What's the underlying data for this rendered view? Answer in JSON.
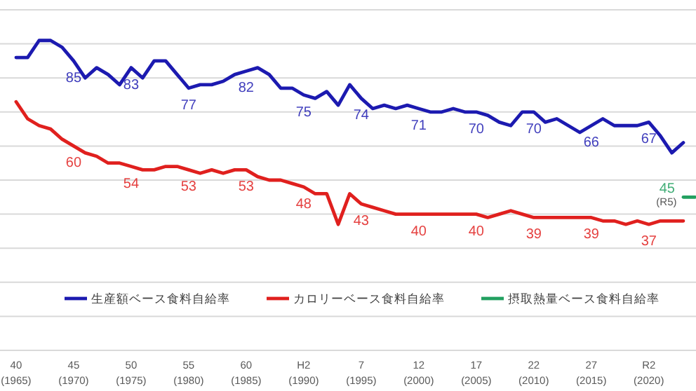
{
  "chart_data": {
    "type": "line",
    "categories": [
      "40\n(1965)",
      null,
      null,
      null,
      null,
      "45\n(1970)",
      null,
      null,
      null,
      null,
      "50\n(1975)",
      null,
      null,
      null,
      null,
      "55\n(1980)",
      null,
      null,
      null,
      null,
      "60\n(1985)",
      null,
      null,
      null,
      null,
      "H2\n(1990)",
      null,
      null,
      null,
      null,
      "7\n(1995)",
      null,
      null,
      null,
      null,
      "12\n(2000)",
      null,
      null,
      null,
      null,
      "17\n(2005)",
      null,
      null,
      null,
      null,
      "22\n(2010)",
      null,
      null,
      null,
      null,
      "27\n(2015)",
      null,
      null,
      null,
      null,
      "R2\n(2020)",
      null,
      null,
      null,
      null
    ],
    "series": [
      {
        "name": "生産額ベース食料自給率",
        "color": "#1c1ab0",
        "values": [
          86,
          86,
          91,
          91,
          89,
          85,
          80,
          83,
          81,
          78,
          83,
          80,
          85,
          85,
          81,
          77,
          78,
          78,
          79,
          81,
          82,
          83,
          81,
          77,
          77,
          75,
          74,
          76,
          72,
          78,
          74,
          71,
          72,
          71,
          72,
          71,
          70,
          70,
          71,
          70,
          70,
          69,
          67,
          66,
          70,
          70,
          67,
          68,
          66,
          64,
          66,
          68,
          66,
          66,
          66,
          67,
          63,
          58,
          61,
          null
        ],
        "value_labels": [
          null,
          null,
          null,
          null,
          null,
          "85",
          null,
          null,
          null,
          null,
          "83",
          null,
          null,
          null,
          null,
          "77",
          null,
          null,
          null,
          null,
          "82",
          null,
          null,
          null,
          null,
          "75",
          null,
          null,
          null,
          null,
          "74",
          null,
          null,
          null,
          null,
          "71",
          null,
          null,
          null,
          null,
          "70",
          null,
          null,
          null,
          null,
          "70",
          null,
          null,
          null,
          null,
          "66",
          null,
          null,
          null,
          null,
          "67",
          null,
          null,
          null,
          null
        ]
      },
      {
        "name": "カロリーベース食料自給率",
        "color": "#e0201e",
        "values": [
          73,
          68,
          66,
          65,
          62,
          60,
          58,
          57,
          55,
          55,
          54,
          53,
          53,
          54,
          54,
          53,
          52,
          53,
          52,
          53,
          53,
          51,
          50,
          50,
          49,
          48,
          46,
          46,
          37,
          46,
          43,
          42,
          41,
          40,
          40,
          40,
          40,
          40,
          40,
          40,
          40,
          39,
          40,
          41,
          40,
          39,
          39,
          39,
          39,
          39,
          39,
          38,
          38,
          37,
          38,
          37,
          38,
          38,
          38,
          null
        ],
        "value_labels": [
          null,
          null,
          null,
          null,
          null,
          "60",
          null,
          null,
          null,
          null,
          "54",
          null,
          null,
          null,
          null,
          "53",
          null,
          null,
          null,
          null,
          "53",
          null,
          null,
          null,
          null,
          "48",
          null,
          null,
          null,
          null,
          "43",
          null,
          null,
          null,
          null,
          "40",
          null,
          null,
          null,
          null,
          "40",
          null,
          null,
          null,
          null,
          "39",
          null,
          null,
          null,
          null,
          "39",
          null,
          null,
          null,
          null,
          "37",
          null,
          null,
          null,
          null
        ]
      },
      {
        "name": "摂取熱量ベース食料自給率",
        "color": "#22a060",
        "values": [
          null,
          null,
          null,
          null,
          null,
          null,
          null,
          null,
          null,
          null,
          null,
          null,
          null,
          null,
          null,
          null,
          null,
          null,
          null,
          null,
          null,
          null,
          null,
          null,
          null,
          null,
          null,
          null,
          null,
          null,
          null,
          null,
          null,
          null,
          null,
          null,
          null,
          null,
          null,
          null,
          null,
          null,
          null,
          null,
          null,
          null,
          null,
          null,
          null,
          null,
          null,
          null,
          null,
          null,
          null,
          null,
          null,
          null,
          45,
          45
        ],
        "value_labels": [
          null,
          null,
          null,
          null,
          null,
          null,
          null,
          null,
          null,
          null,
          null,
          null,
          null,
          null,
          null,
          null,
          null,
          null,
          null,
          null,
          null,
          null,
          null,
          null,
          null,
          null,
          null,
          null,
          null,
          null,
          null,
          null,
          null,
          null,
          null,
          null,
          null,
          null,
          null,
          null,
          null,
          null,
          null,
          null,
          null,
          null,
          null,
          null,
          null,
          null,
          null,
          null,
          null,
          null,
          null,
          null,
          null,
          null,
          "45",
          null
        ]
      }
    ],
    "annotations": [
      "(R5)"
    ],
    "ylim": [
      0,
      100
    ],
    "yticks": [
      {
        "value": 0,
        "label": null
      },
      {
        "value": 10,
        "label": null
      },
      {
        "value": 20,
        "label": null
      },
      {
        "value": 30,
        "label": null
      },
      {
        "value": 40,
        "label": null
      },
      {
        "value": 50,
        "label": null
      },
      {
        "value": 60,
        "label": null
      },
      {
        "value": 70,
        "label": null
      },
      {
        "value": 80,
        "label": null
      },
      {
        "value": 90,
        "label": null
      },
      {
        "value": 100,
        "label": null
      }
    ],
    "tick_labels": "x",
    "grid": "y",
    "legend": "bottom",
    "line_style": "solid"
  }
}
